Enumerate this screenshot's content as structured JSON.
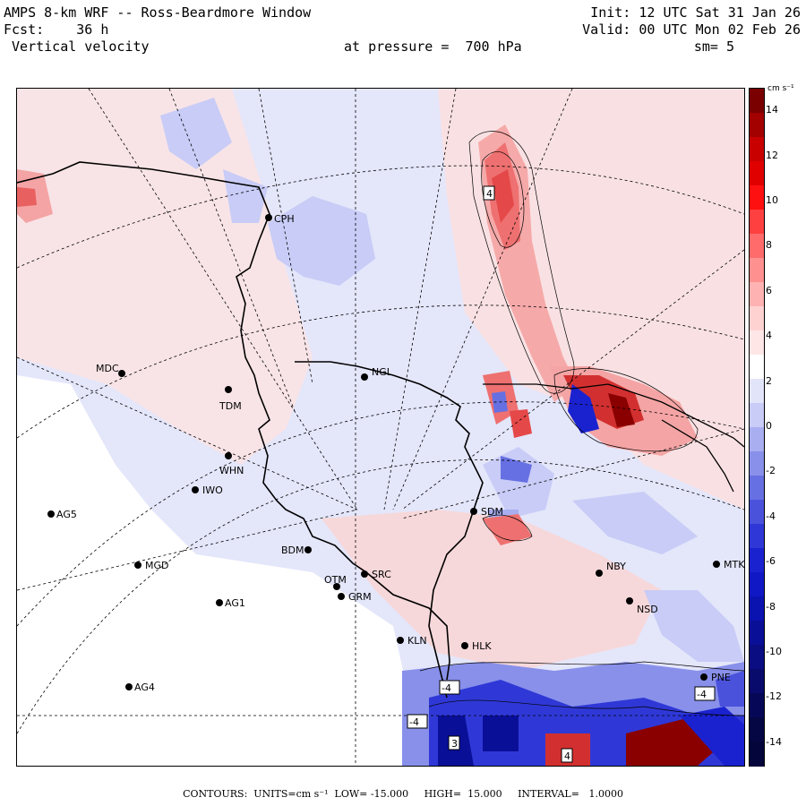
{
  "header": {
    "left_line1": "AMPS 8-km WRF -- Ross-Beardmore Window",
    "left_line2": "Fcst:    36 h",
    "left_line3": " Vertical velocity",
    "center_line3": "at pressure =  700 hPa",
    "right_line1": "Init: 12 UTC Sat 31 Jan 26",
    "right_line2": "Valid: 00 UTC Mon 02 Feb 26",
    "right_line3": "sm= 5"
  },
  "colorbar": {
    "units_label": "cm s⁻¹",
    "tick_labels": [
      "14",
      "12",
      "10",
      "8",
      "6",
      "4",
      "2",
      "0",
      "-2",
      "-4",
      "-6",
      "-8",
      "-10",
      "-12",
      "-14"
    ],
    "colors": [
      "#7a0000",
      "#a30000",
      "#c80000",
      "#e00000",
      "#ff1010",
      "#ff4040",
      "#ff6b6b",
      "#ff9090",
      "#ffb2b2",
      "#ffd2d2",
      "#ffe6e6",
      "#ffffff",
      "#e2e4fa",
      "#c8ccf6",
      "#a8aef0",
      "#8890ea",
      "#6670e2",
      "#4a52dc",
      "#2f38d6",
      "#1a22d0",
      "#0f18c4",
      "#0a12b0",
      "#0a0f98",
      "#0a0c82",
      "#080a6c",
      "#060857",
      "#050744",
      "#04053a"
    ]
  },
  "stations": [
    {
      "id": "CPH",
      "label": "CPH"
    },
    {
      "id": "MDC",
      "label": "MDC"
    },
    {
      "id": "TDM",
      "label": "TDM"
    },
    {
      "id": "NGL",
      "label": "NGL"
    },
    {
      "id": "WHN",
      "label": "WHN"
    },
    {
      "id": "IWO",
      "label": "IWO"
    },
    {
      "id": "AG5",
      "label": "AG5"
    },
    {
      "id": "SDM",
      "label": "SDM"
    },
    {
      "id": "BDM",
      "label": "BDM"
    },
    {
      "id": "MGD",
      "label": "MGD"
    },
    {
      "id": "SRC",
      "label": "SRC"
    },
    {
      "id": "OTM",
      "label": "OTM"
    },
    {
      "id": "GRM",
      "label": "GRM"
    },
    {
      "id": "AG1",
      "label": "AG1"
    },
    {
      "id": "NBY",
      "label": "NBY"
    },
    {
      "id": "MTK",
      "label": "MTK"
    },
    {
      "id": "NSD",
      "label": "NSD"
    },
    {
      "id": "KLN",
      "label": "KLN"
    },
    {
      "id": "HLK",
      "label": "HLK"
    },
    {
      "id": "AG4",
      "label": "AG4"
    },
    {
      "id": "PNE",
      "label": "PNE"
    }
  ],
  "contour_labels": [
    "4",
    "-4",
    "-4",
    "-4",
    "3",
    "4"
  ],
  "footer": "CONTOURS:  UNITS=cm s⁻¹  LOW= -15.000     HIGH=  15.000     INTERVAL=   1.0000"
}
